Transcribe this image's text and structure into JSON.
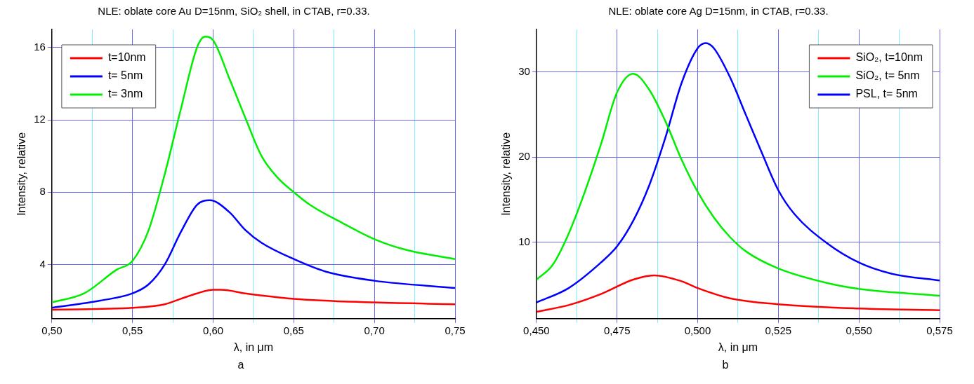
{
  "chart_data": [
    {
      "type": "line",
      "title": "NLE: oblate core Au D=15nm, SiO₂ shell, in CTAB, r=0.33.",
      "xlabel": "λ, in μm",
      "ylabel": "Intensity, relative",
      "annotations": [
        "a"
      ],
      "legend": "top left",
      "grid": true,
      "marker": "none",
      "line_style": "solid",
      "xlim": [
        0.5,
        0.75
      ],
      "xticks": [
        {
          "value": 0.5,
          "label": "0,50"
        },
        {
          "value": 0.525,
          "label": null
        },
        {
          "value": 0.55,
          "label": "0,55"
        },
        {
          "value": 0.575,
          "label": null
        },
        {
          "value": 0.6,
          "label": "0,60"
        },
        {
          "value": 0.625,
          "label": null
        },
        {
          "value": 0.65,
          "label": "0,65"
        },
        {
          "value": 0.675,
          "label": null
        },
        {
          "value": 0.7,
          "label": "0,70"
        },
        {
          "value": 0.725,
          "label": null
        },
        {
          "value": 0.75,
          "label": "0,75"
        }
      ],
      "ylim": [
        1,
        17
      ],
      "yticks": [
        4,
        8,
        12,
        16
      ],
      "series": [
        {
          "name": "t=10nm",
          "color": "#ff0000",
          "x": [
            0.5,
            0.55,
            0.57,
            0.58,
            0.59,
            0.6,
            0.605,
            0.62,
            0.65,
            0.7,
            0.75
          ],
          "values": [
            1.5,
            1.6,
            1.8,
            2.1,
            2.4,
            2.6,
            2.6,
            2.4,
            2.1,
            1.9,
            1.8
          ]
        },
        {
          "name": "t= 5nm",
          "color": "#0000ff",
          "x": [
            0.5,
            0.53,
            0.55,
            0.56,
            0.57,
            0.58,
            0.59,
            0.598,
            0.61,
            0.62,
            0.63,
            0.65,
            0.67,
            0.7,
            0.75
          ],
          "values": [
            1.6,
            2.0,
            2.4,
            2.9,
            4.0,
            5.8,
            7.3,
            7.55,
            6.9,
            5.9,
            5.2,
            4.3,
            3.6,
            3.1,
            2.7
          ]
        },
        {
          "name": "t= 3nm",
          "color": "#00ee00",
          "x": [
            0.5,
            0.52,
            0.54,
            0.55,
            0.56,
            0.57,
            0.58,
            0.59,
            0.595,
            0.6,
            0.61,
            0.62,
            0.63,
            0.64,
            0.65,
            0.66,
            0.68,
            0.7,
            0.72,
            0.75
          ],
          "values": [
            1.9,
            2.4,
            3.7,
            4.2,
            5.9,
            9.0,
            12.6,
            16.0,
            16.6,
            16.4,
            14.3,
            12.1,
            10.0,
            8.8,
            8.0,
            7.3,
            6.3,
            5.4,
            4.8,
            4.3
          ]
        }
      ]
    },
    {
      "type": "line",
      "title": "NLE: oblate core Ag D=15nm, in CTAB, r=0.33.",
      "xlabel": "λ, in μm",
      "ylabel": "Intensity, relative",
      "annotations": [
        "b"
      ],
      "legend": "top right",
      "grid": true,
      "marker": "none",
      "line_style": "solid",
      "xlim": [
        0.45,
        0.575
      ],
      "xticks": [
        {
          "value": 0.45,
          "label": "0,450"
        },
        {
          "value": 0.4625,
          "label": null
        },
        {
          "value": 0.475,
          "label": "0,475"
        },
        {
          "value": 0.4875,
          "label": null
        },
        {
          "value": 0.5,
          "label": "0,500"
        },
        {
          "value": 0.5125,
          "label": null
        },
        {
          "value": 0.525,
          "label": "0,525"
        },
        {
          "value": 0.5375,
          "label": null
        },
        {
          "value": 0.55,
          "label": "0,550"
        },
        {
          "value": 0.5625,
          "label": null
        },
        {
          "value": 0.575,
          "label": "0,575"
        }
      ],
      "ylim": [
        1,
        35
      ],
      "yticks": [
        10,
        20,
        30
      ],
      "series": [
        {
          "name": "SiO₂, t=10nm",
          "color": "#ff0000",
          "x": [
            0.45,
            0.46,
            0.47,
            0.48,
            0.4865,
            0.495,
            0.5,
            0.51,
            0.525,
            0.55,
            0.575
          ],
          "values": [
            1.8,
            2.6,
            3.9,
            5.6,
            6.1,
            5.4,
            4.6,
            3.4,
            2.7,
            2.2,
            2.0
          ]
        },
        {
          "name": "SiO₂, t= 5nm",
          "color": "#00ee00",
          "x": [
            0.45,
            0.455,
            0.46,
            0.465,
            0.47,
            0.475,
            0.48,
            0.485,
            0.49,
            0.495,
            0.5,
            0.505,
            0.51,
            0.515,
            0.525,
            0.54,
            0.55,
            0.575
          ],
          "values": [
            5.6,
            7.3,
            11.0,
            15.9,
            21.5,
            27.6,
            29.8,
            27.9,
            24.2,
            19.7,
            15.9,
            12.9,
            10.6,
            8.9,
            6.9,
            5.2,
            4.5,
            3.7
          ]
        },
        {
          "name": "PSL, t= 5nm",
          "color": "#0000ff",
          "x": [
            0.45,
            0.46,
            0.47,
            0.475,
            0.48,
            0.485,
            0.49,
            0.495,
            0.5,
            0.5025,
            0.505,
            0.51,
            0.515,
            0.52,
            0.525,
            0.53,
            0.54,
            0.55,
            0.56,
            0.575
          ],
          "values": [
            2.9,
            4.6,
            7.6,
            9.5,
            12.5,
            16.7,
            22.3,
            28.7,
            32.8,
            33.4,
            32.8,
            29.4,
            24.9,
            20.4,
            16.1,
            13.3,
            9.9,
            7.6,
            6.3,
            5.5
          ]
        }
      ]
    }
  ]
}
